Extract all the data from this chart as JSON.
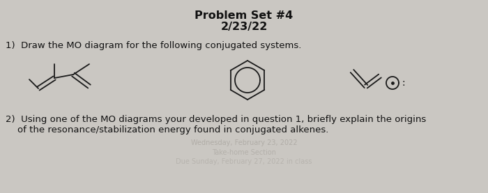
{
  "title_line1": "Problem Set #4",
  "title_line2": "2/23/22",
  "q1_text": "1)  Draw the MO diagram for the following conjugated systems.",
  "q2_line1": "2)  Using one of the MO diagrams your developed in question 1, briefly explain the origins",
  "q2_line2": "    of the resonance/stabilization energy found in conjugated alkenes.",
  "bg_color": "#cac7c2",
  "text_color": "#111111",
  "watermark_color": "#a8a49e",
  "title_fontsize": 11.5,
  "body_fontsize": 9.5
}
